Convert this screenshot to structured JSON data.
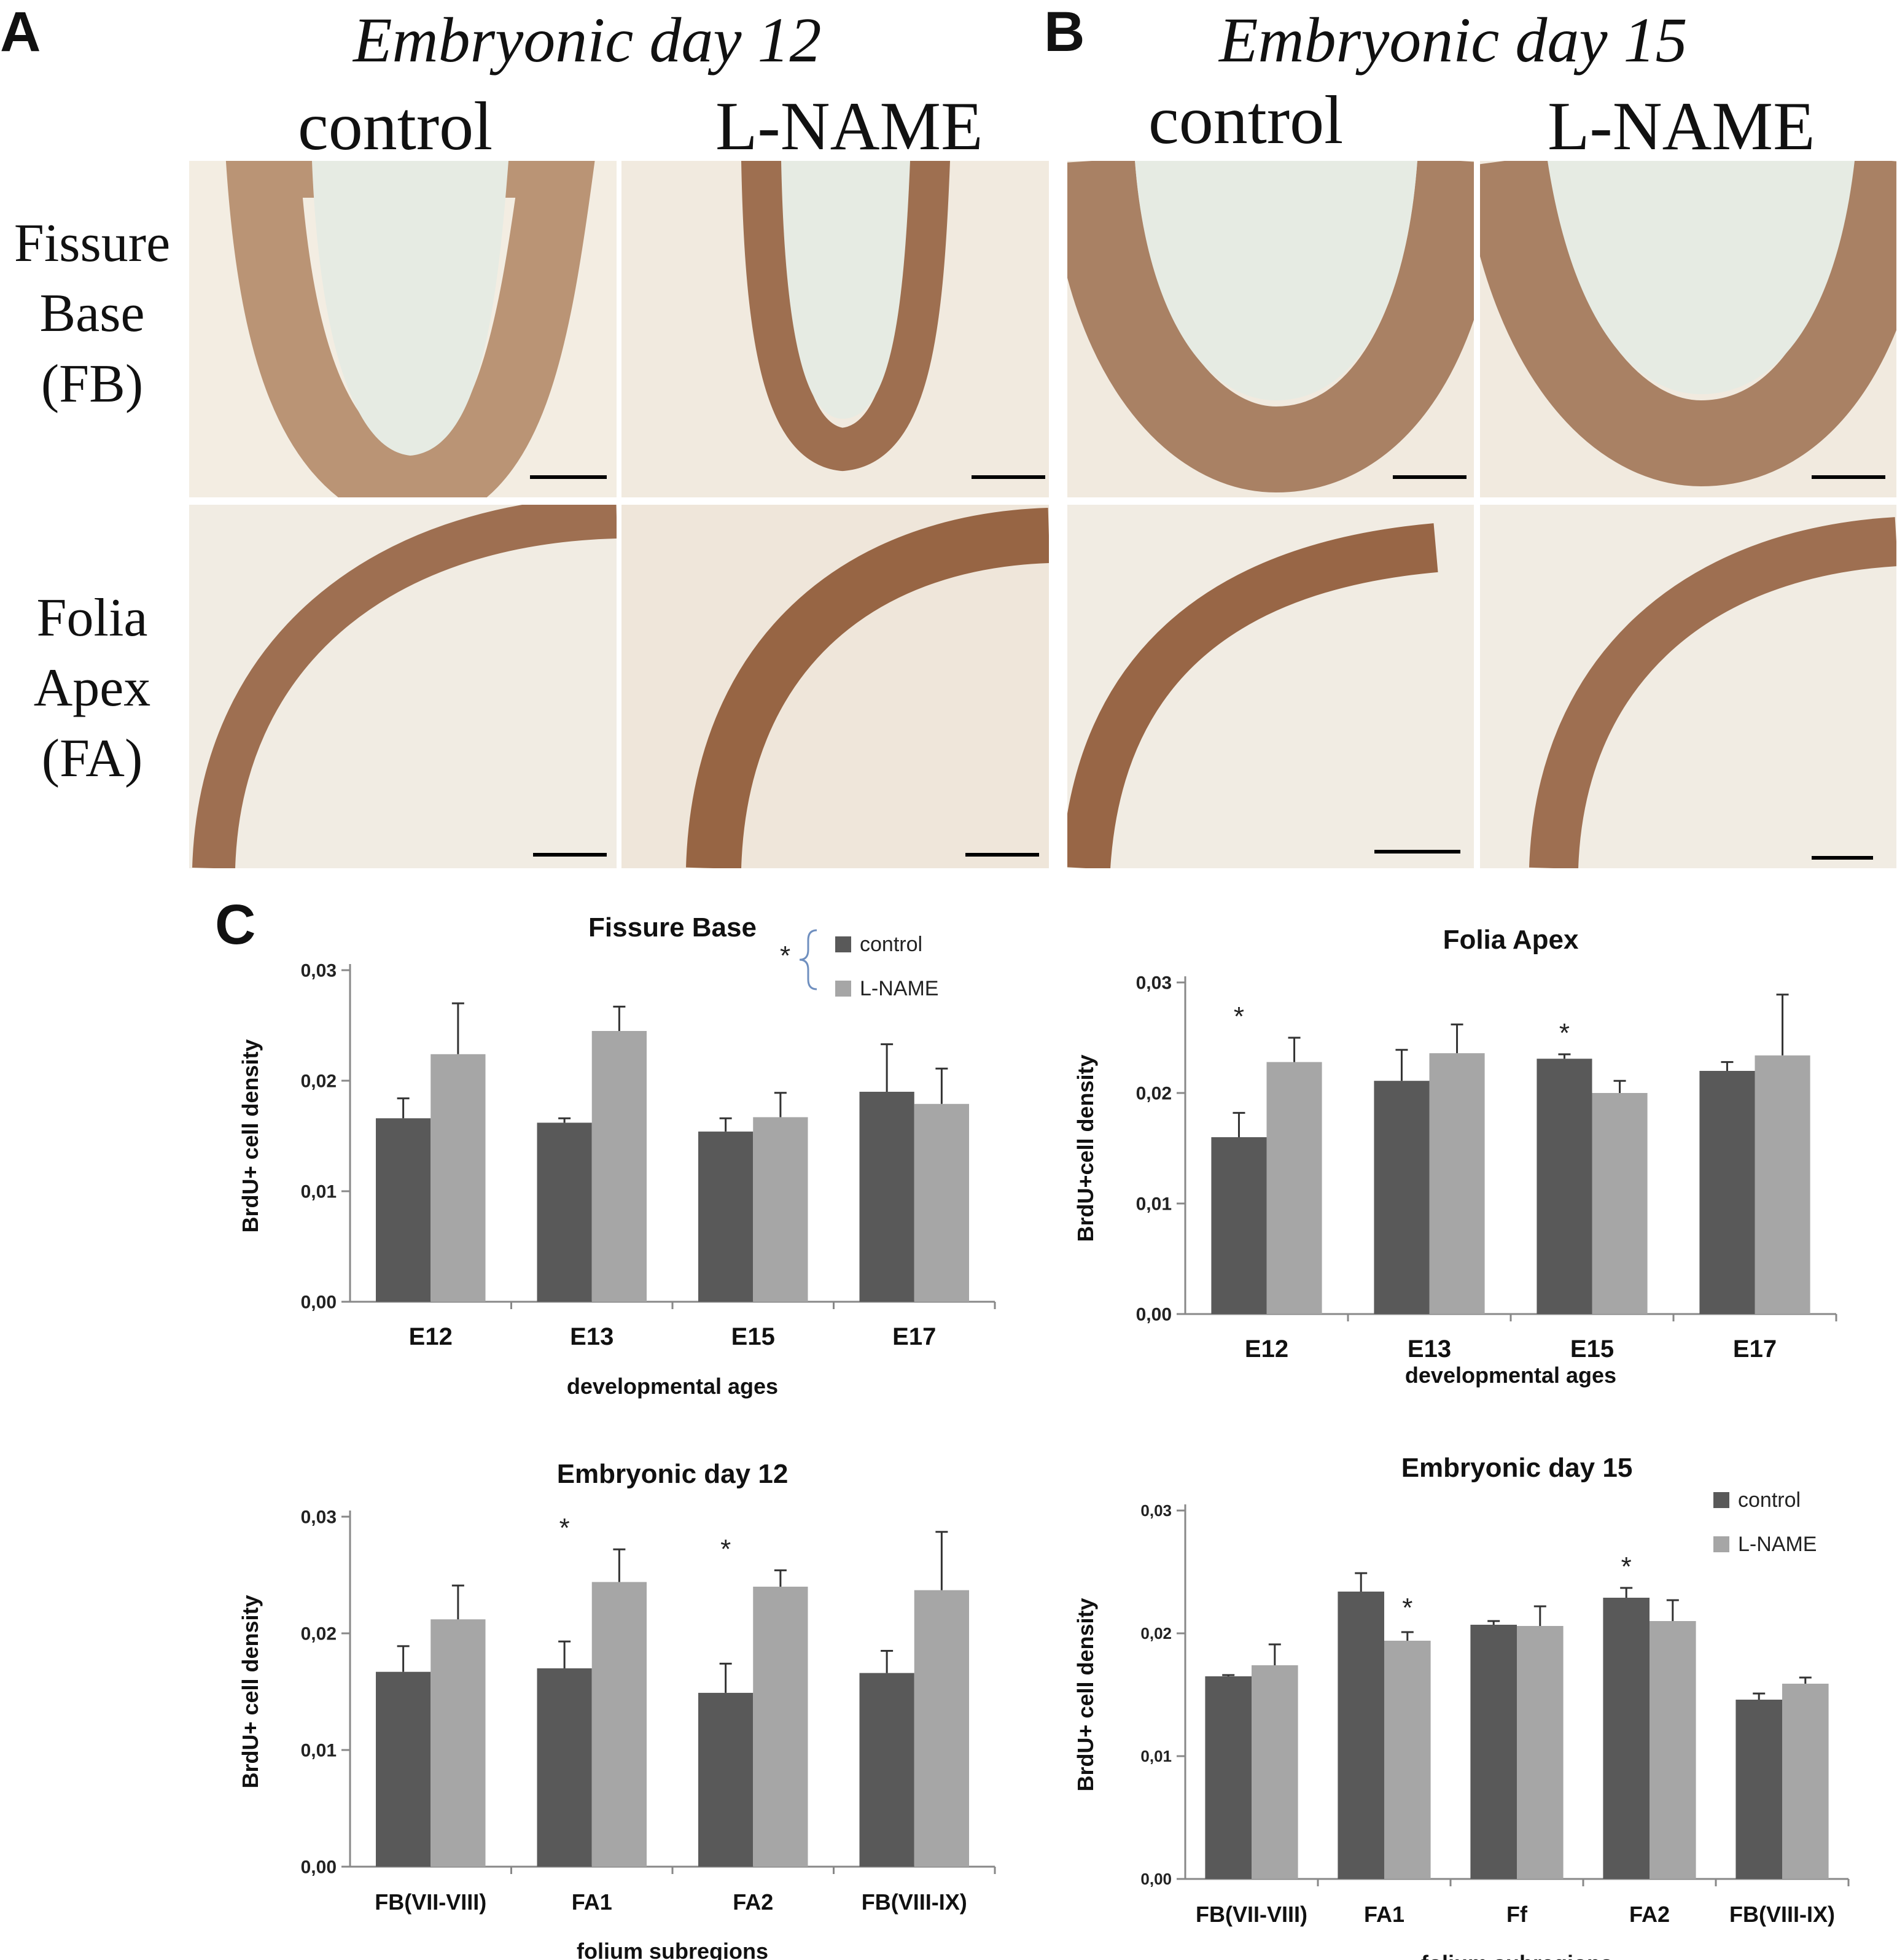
{
  "figure": {
    "panels": {
      "A": {
        "letter": "A",
        "title": "Embryonic day 12",
        "col1": "control",
        "col2": "L-NAME"
      },
      "B": {
        "letter": "B",
        "title": "Embryonic day 15",
        "col1": "control",
        "col2": "L-NAME"
      },
      "C": {
        "letter": "C"
      }
    },
    "row_labels": {
      "fb": [
        "Fissure",
        "Base",
        "(FB)"
      ],
      "fa": [
        "Folia",
        "Apex",
        "(FA)"
      ]
    },
    "colors": {
      "control": "#595959",
      "lname": "#a6a6a6",
      "stain": "#7a3a12",
      "tissue": "#f3ede2",
      "lumen": "#e6ebe3",
      "bracket": "#6f8fbf"
    }
  },
  "chart_data": [
    {
      "id": "fissure-base",
      "type": "bar",
      "title": "Fissure Base",
      "xlabel": "developmental ages",
      "ylabel": "BrdU+ cell density",
      "ylim": [
        0,
        0.03
      ],
      "yticks": [
        "0,00",
        "0,01",
        "0,02",
        "0,03"
      ],
      "categories": [
        "E12",
        "E13",
        "E15",
        "E17"
      ],
      "series": [
        {
          "name": "control",
          "values": [
            0.0166,
            0.0162,
            0.0154,
            0.019
          ],
          "errors": [
            0.0018,
            0.0004,
            0.0012,
            0.0043
          ]
        },
        {
          "name": "L-NAME",
          "values": [
            0.0224,
            0.0245,
            0.0167,
            0.0179
          ],
          "errors": [
            0.0046,
            0.0022,
            0.0022,
            0.0032
          ]
        }
      ],
      "legend": {
        "position": "top-right",
        "entries": [
          "control",
          "L-NAME"
        ],
        "annotation": "*"
      },
      "significance": []
    },
    {
      "id": "folia-apex",
      "type": "bar",
      "title": "Folia Apex",
      "xlabel": "developmental ages",
      "ylabel": "BrdU+cell density",
      "ylim": [
        0,
        0.03
      ],
      "yticks": [
        "0,00",
        "0,01",
        "0,02",
        "0,03"
      ],
      "categories": [
        "E12",
        "E13",
        "E15",
        "E17"
      ],
      "series": [
        {
          "name": "control",
          "values": [
            0.016,
            0.0211,
            0.0231,
            0.022
          ],
          "errors": [
            0.0022,
            0.0028,
            0.0004,
            0.0008
          ]
        },
        {
          "name": "L-NAME",
          "values": [
            0.0228,
            0.0236,
            0.02,
            0.0234
          ],
          "errors": [
            0.0022,
            0.0026,
            0.0011,
            0.0055
          ]
        }
      ],
      "significance": [
        {
          "category": 0,
          "label": "*"
        },
        {
          "category": 2,
          "label": "*"
        }
      ]
    },
    {
      "id": "embryonic-day-12",
      "type": "bar",
      "title": "Embryonic day 12",
      "xlabel": "folium subregions",
      "ylabel": "BrdU+ cell density",
      "ylim": [
        0,
        0.03
      ],
      "yticks": [
        "0,00",
        "0,01",
        "0,02",
        "0,03"
      ],
      "categories": [
        "FB(VII-VIII)",
        "FA1",
        "FA2",
        "FB(VIII-IX)"
      ],
      "series": [
        {
          "name": "control",
          "values": [
            0.0167,
            0.017,
            0.0149,
            0.0166
          ],
          "errors": [
            0.0022,
            0.0023,
            0.0025,
            0.0019
          ]
        },
        {
          "name": "L-NAME",
          "values": [
            0.0212,
            0.0244,
            0.024,
            0.0237
          ],
          "errors": [
            0.0029,
            0.0028,
            0.0014,
            0.005
          ]
        }
      ],
      "significance": [
        {
          "category": 1,
          "label": "*"
        },
        {
          "category": 2,
          "label": "*"
        }
      ]
    },
    {
      "id": "embryonic-day-15",
      "type": "bar",
      "title": "Embryonic day 15",
      "xlabel": "folium subregions",
      "ylabel": "BrdU+ cell density",
      "ylim": [
        0,
        0.03
      ],
      "yticks": [
        "0,00",
        "0,01",
        "0,02",
        "0,03"
      ],
      "categories": [
        "FB(VII-VIII)",
        "FA1",
        "Ff",
        "FA2",
        "FB(VIII-IX)"
      ],
      "series": [
        {
          "name": "control",
          "values": [
            0.0165,
            0.0234,
            0.0207,
            0.0229,
            0.0146
          ],
          "errors": [
            0.0001,
            0.0015,
            0.0003,
            0.0008,
            0.0005
          ]
        },
        {
          "name": "L-NAME",
          "values": [
            0.0174,
            0.0194,
            0.0206,
            0.021,
            0.0159
          ],
          "errors": [
            0.0017,
            0.0007,
            0.0016,
            0.0017,
            0.0005
          ]
        }
      ],
      "legend": {
        "position": "top-right",
        "entries": [
          "control",
          "L-NAME"
        ]
      },
      "significance": [
        {
          "category": 1,
          "label": "*",
          "series": 1
        },
        {
          "category": 3,
          "label": "*"
        }
      ]
    }
  ]
}
